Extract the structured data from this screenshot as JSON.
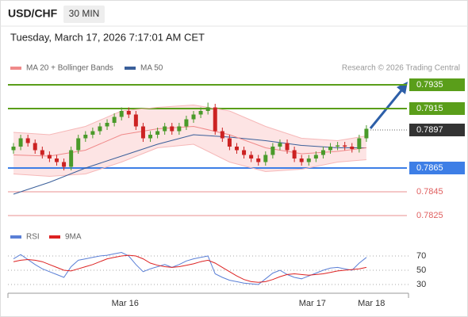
{
  "header": {
    "symbol": "USD/CHF",
    "timeframe": "30 MIN",
    "datetime": "Tuesday, March 17, 2026 7:17:01 AM CET"
  },
  "chart_data": {
    "type": "candlestick",
    "legend": [
      {
        "name": "MA 20 + Bollinger Bands",
        "color": "#f08a8a"
      },
      {
        "name": "MA 50",
        "color": "#3a5f9a"
      }
    ],
    "credit": "Research © 2026 Trading Central",
    "ylim": [
      0.7818,
      0.7945
    ],
    "open": [
      0.788,
      0.7883,
      0.789,
      0.7886,
      0.788,
      0.7876,
      0.7873,
      0.787,
      0.7866,
      0.788,
      0.789,
      0.7893,
      0.7896,
      0.79,
      0.7903,
      0.7908,
      0.7913,
      0.791,
      0.79,
      0.789,
      0.7893,
      0.7896,
      0.79,
      0.7896,
      0.79,
      0.7906,
      0.791,
      0.7913,
      0.7916,
      0.7896,
      0.789,
      0.7883,
      0.788,
      0.7876,
      0.7873,
      0.787,
      0.7876,
      0.7883,
      0.7886,
      0.788,
      0.7873,
      0.787,
      0.7873,
      0.7876,
      0.788,
      0.7883,
      0.7884,
      0.7883,
      0.7881,
      0.789
    ],
    "high": [
      0.7886,
      0.7893,
      0.7893,
      0.7889,
      0.7883,
      0.7879,
      0.7876,
      0.7873,
      0.7883,
      0.7893,
      0.7896,
      0.7899,
      0.7903,
      0.7906,
      0.7911,
      0.7916,
      0.7916,
      0.7913,
      0.7903,
      0.7896,
      0.7899,
      0.7903,
      0.7903,
      0.7903,
      0.7909,
      0.7913,
      0.7916,
      0.792,
      0.7919,
      0.7899,
      0.7893,
      0.7886,
      0.7883,
      0.7879,
      0.7876,
      0.7879,
      0.7886,
      0.7889,
      0.7889,
      0.7883,
      0.7876,
      0.7876,
      0.7879,
      0.7883,
      0.7886,
      0.7887,
      0.7887,
      0.7886,
      0.7893,
      0.7901
    ],
    "low": [
      0.7877,
      0.788,
      0.7883,
      0.7877,
      0.7873,
      0.787,
      0.7867,
      0.7863,
      0.7863,
      0.7877,
      0.7887,
      0.789,
      0.7893,
      0.7897,
      0.79,
      0.7905,
      0.7907,
      0.7897,
      0.7887,
      0.7887,
      0.789,
      0.7893,
      0.7893,
      0.7893,
      0.7897,
      0.7903,
      0.7907,
      0.791,
      0.7893,
      0.7887,
      0.788,
      0.7877,
      0.7873,
      0.787,
      0.7867,
      0.7867,
      0.7873,
      0.788,
      0.7877,
      0.787,
      0.7867,
      0.7867,
      0.787,
      0.7873,
      0.7877,
      0.788,
      0.788,
      0.7878,
      0.7878,
      0.7887
    ],
    "close": [
      0.7883,
      0.789,
      0.7886,
      0.788,
      0.7876,
      0.7873,
      0.787,
      0.7866,
      0.788,
      0.789,
      0.7893,
      0.7896,
      0.79,
      0.7903,
      0.7908,
      0.7913,
      0.791,
      0.79,
      0.789,
      0.7893,
      0.7896,
      0.79,
      0.7896,
      0.79,
      0.7906,
      0.791,
      0.7913,
      0.7916,
      0.7896,
      0.789,
      0.7883,
      0.788,
      0.7876,
      0.7873,
      0.787,
      0.7876,
      0.7883,
      0.7886,
      0.788,
      0.7873,
      0.787,
      0.7873,
      0.7876,
      0.788,
      0.7883,
      0.7884,
      0.7883,
      0.7881,
      0.789,
      0.7898
    ],
    "up_color": "#4a9a2a",
    "down_color": "#cc2222",
    "ma_x": [
      0,
      5,
      10,
      15,
      20,
      25,
      30,
      35,
      40,
      45,
      49
    ],
    "ma20": [
      0.7876,
      0.7875,
      0.788,
      0.7893,
      0.7898,
      0.79,
      0.7893,
      0.7882,
      0.7877,
      0.7879,
      0.7882
    ],
    "ma50": [
      0.7843,
      0.7853,
      0.7865,
      0.7875,
      0.7885,
      0.7893,
      0.7891,
      0.7888,
      0.7884,
      0.7882,
      0.7882
    ],
    "band_upper": [
      0.7895,
      0.7893,
      0.79,
      0.7913,
      0.7916,
      0.7918,
      0.7913,
      0.79,
      0.789,
      0.7888,
      0.7892
    ],
    "band_lower": [
      0.786,
      0.7858,
      0.786,
      0.787,
      0.7882,
      0.7885,
      0.787,
      0.7862,
      0.7864,
      0.787,
      0.7872
    ],
    "levels": [
      {
        "value": 0.7935,
        "color": "#5a9e1a",
        "style": "box"
      },
      {
        "value": 0.7915,
        "color": "#5a9e1a",
        "style": "box"
      },
      {
        "value": 0.7897,
        "color": "#333333",
        "style": "current"
      },
      {
        "value": 0.7865,
        "color": "#3d7ee6",
        "style": "box"
      },
      {
        "value": 0.7845,
        "color": "#e06060",
        "style": "text"
      },
      {
        "value": 0.7825,
        "color": "#e06060",
        "style": "text"
      }
    ],
    "xlabels": [
      {
        "index": 15.5,
        "label": "Mar 16"
      },
      {
        "index": 41.5,
        "label": "Mar 17"
      },
      {
        "index": 49.7,
        "label": "Mar 18"
      }
    ],
    "rsi": {
      "ylim": [
        20,
        85
      ],
      "yticks": [
        30,
        50,
        70
      ],
      "series": [
        {
          "name": "RSI",
          "color": "#5a7fd6",
          "values": [
            66,
            72,
            65,
            58,
            52,
            48,
            44,
            40,
            55,
            64,
            66,
            68,
            70,
            71,
            73,
            75,
            70,
            58,
            48,
            52,
            55,
            58,
            54,
            58,
            63,
            66,
            68,
            70,
            45,
            40,
            36,
            34,
            32,
            31,
            30,
            38,
            46,
            50,
            44,
            40,
            38,
            42,
            46,
            50,
            53,
            54,
            52,
            50,
            60,
            68
          ]
        },
        {
          "name": "9MA",
          "color": "#dd2222",
          "values": [
            62,
            64,
            65,
            64,
            62,
            58,
            54,
            50,
            49,
            52,
            55,
            58,
            62,
            66,
            68,
            70,
            71,
            70,
            66,
            60,
            57,
            55,
            54,
            55,
            57,
            59,
            62,
            64,
            60,
            54,
            48,
            42,
            37,
            34,
            33,
            34,
            37,
            41,
            44,
            45,
            44,
            43,
            44,
            45,
            47,
            49,
            50,
            51,
            52,
            54
          ]
        }
      ]
    }
  }
}
